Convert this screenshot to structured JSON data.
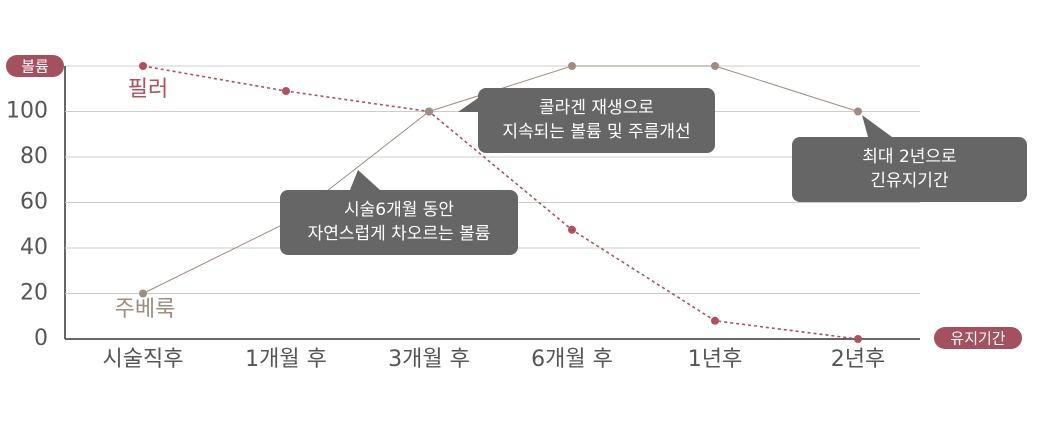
{
  "chart_data": {
    "type": "line",
    "y_label": "볼륨",
    "x_label": "유지기간",
    "categories": [
      "시술직후",
      "1개월 후",
      "3개월 후",
      "6개월 후",
      "1년후",
      "2년후"
    ],
    "series": [
      {
        "name": "필러",
        "color": "#b0505e",
        "dashed": true,
        "values": [
          120,
          109,
          100,
          48,
          8,
          0
        ]
      },
      {
        "name": "주베룩",
        "color": "#a08c80",
        "dashed": false,
        "values": [
          20,
          51,
          100,
          120,
          120,
          100
        ]
      }
    ],
    "ylim": [
      0,
      120
    ],
    "yticks": [
      0,
      20,
      40,
      60,
      80,
      100
    ],
    "grid": true,
    "annotations": [
      {
        "lines": [
          "콜라겐 재생으로",
          "지속되는 볼륨 및 주름개선"
        ]
      },
      {
        "lines": [
          "시술6개월 동안",
          "자연스럽게 차오르는 볼륨"
        ]
      },
      {
        "lines": [
          "최대 2년으로",
          "긴유지기간"
        ]
      }
    ]
  }
}
